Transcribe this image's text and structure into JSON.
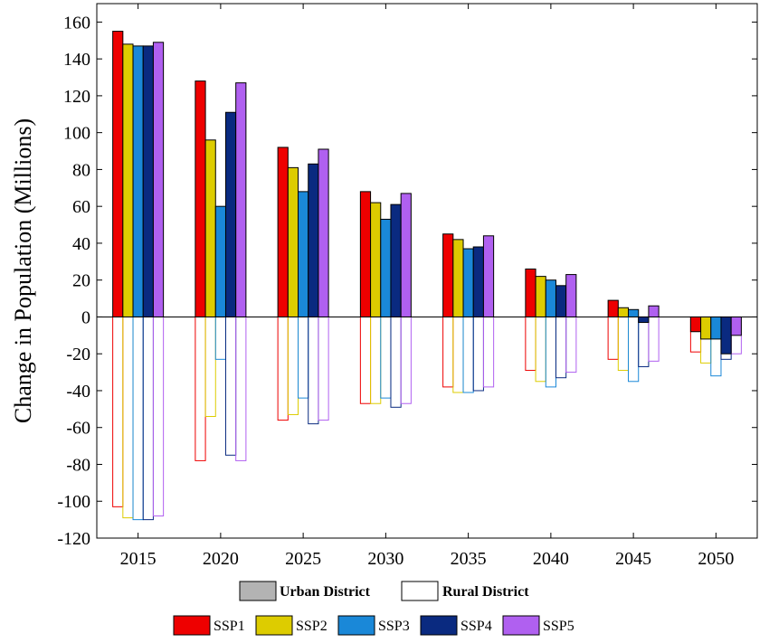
{
  "chart_data": {
    "type": "bar",
    "title": "",
    "xlabel": "",
    "ylabel": "Change in Population (Millions)",
    "ylim": [
      -120,
      170
    ],
    "yticks": [
      -120,
      -100,
      -80,
      -60,
      -40,
      -20,
      0,
      20,
      40,
      60,
      80,
      100,
      120,
      140,
      160
    ],
    "categories": [
      "2015",
      "2020",
      "2025",
      "2030",
      "2035",
      "2040",
      "2045",
      "2050"
    ],
    "grid": false,
    "legend_placement": "bottom",
    "group_legend": [
      {
        "name": "Urban District",
        "style": "filled",
        "color": "#b3b3b3"
      },
      {
        "name": "Rural District",
        "style": "outline",
        "color": "#ffffff"
      }
    ],
    "series": [
      {
        "name": "SSP1",
        "color": "#ee0000",
        "urban": [
          155,
          128,
          92,
          68,
          45,
          26,
          9,
          -8
        ],
        "rural": [
          -103,
          -78,
          -56,
          -47,
          -38,
          -29,
          -23,
          -19
        ]
      },
      {
        "name": "SSP2",
        "color": "#ddcc00",
        "urban": [
          148,
          96,
          81,
          62,
          42,
          22,
          5,
          -12
        ],
        "rural": [
          -109,
          -54,
          -53,
          -47,
          -41,
          -35,
          -29,
          -25
        ]
      },
      {
        "name": "SSP3",
        "color": "#1a88d8",
        "urban": [
          147,
          60,
          68,
          53,
          37,
          20,
          4,
          -12
        ],
        "rural": [
          -110,
          -23,
          -44,
          -44,
          -41,
          -38,
          -35,
          -32
        ]
      },
      {
        "name": "SSP4",
        "color": "#0a2a80",
        "urban": [
          147,
          111,
          83,
          61,
          38,
          17,
          -3,
          -20
        ],
        "rural": [
          -110,
          -75,
          -58,
          -49,
          -40,
          -33,
          -27,
          -23
        ]
      },
      {
        "name": "SSP5",
        "color": "#b060f0",
        "urban": [
          149,
          127,
          91,
          67,
          44,
          23,
          6,
          -10
        ],
        "rural": [
          -108,
          -78,
          -56,
          -47,
          -38,
          -30,
          -24,
          -20
        ]
      }
    ]
  }
}
